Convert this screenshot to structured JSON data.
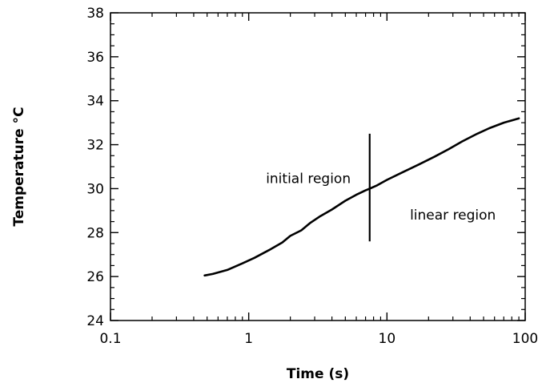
{
  "chart_data": {
    "type": "line",
    "title": "",
    "xlabel": "Time (s)",
    "ylabel": "Temperature °C",
    "x_scale": "log",
    "xlim": [
      0.1,
      100
    ],
    "ylim": [
      24,
      38
    ],
    "x_ticks": [
      "0.1",
      "1",
      "10",
      "100"
    ],
    "y_ticks": [
      "24",
      "26",
      "28",
      "30",
      "32",
      "34",
      "36",
      "38"
    ],
    "grid": false,
    "legend": "none",
    "series": [
      {
        "x": [
          0.48,
          0.55,
          0.7,
          0.9,
          1.1,
          1.4,
          1.75,
          2.0,
          2.4,
          2.8,
          3.3,
          4.0,
          5.0,
          6.0,
          7.0,
          7.5,
          8.5,
          10,
          13,
          17,
          22,
          28,
          35,
          45,
          55,
          70,
          85,
          90
        ],
        "y": [
          26.05,
          26.12,
          26.3,
          26.6,
          26.85,
          27.2,
          27.55,
          27.85,
          28.1,
          28.45,
          28.75,
          29.05,
          29.45,
          29.72,
          29.92,
          30.0,
          30.15,
          30.4,
          30.75,
          31.1,
          31.45,
          31.8,
          32.15,
          32.5,
          32.75,
          33.0,
          33.15,
          33.2
        ]
      }
    ],
    "divider": {
      "x": 7.5,
      "y_range": [
        27.6,
        32.5
      ]
    },
    "annotations": [
      {
        "text": "initial region",
        "x": 2.7,
        "y": 30.25
      },
      {
        "text": "linear region",
        "x": 30,
        "y": 28.6
      }
    ]
  }
}
